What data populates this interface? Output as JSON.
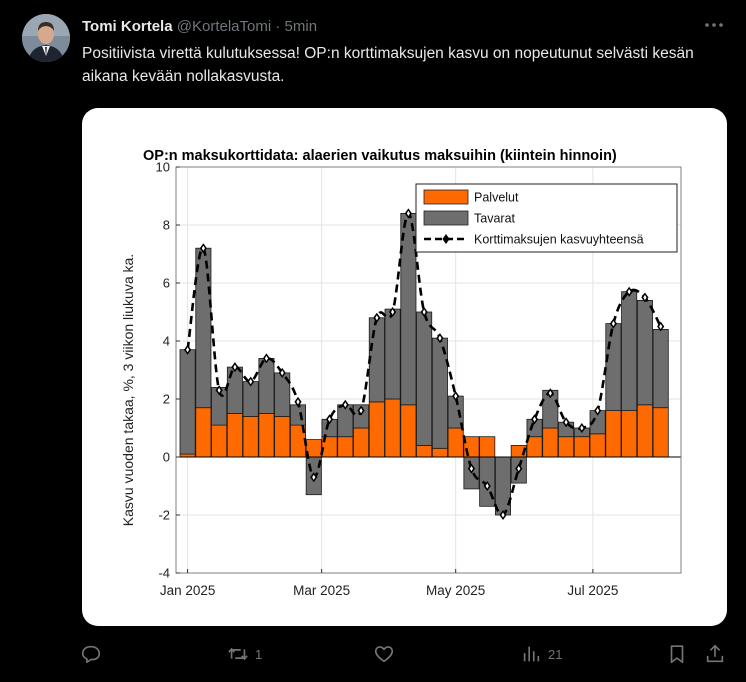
{
  "tweet": {
    "display_name": "Tomi Kortela",
    "handle": "@KortelaTomi",
    "separator": "·",
    "time": "5min",
    "text": "Positiivista virettä kulutuksessa! OP:n korttimaksujen kasvu on nopeutunut selvästi kesän aikana kevään nollakasvusta."
  },
  "actions": {
    "reply_count": "",
    "retweet_count": "1",
    "like_count": "",
    "views_count": "21"
  },
  "colors": {
    "background": "#000000",
    "text": "#e7e9ea",
    "muted": "#71767b",
    "palvelut": "#ff6a00",
    "tavarat": "#6e6e6e"
  },
  "chart_data": {
    "type": "bar",
    "title": "OP:n maksukorttidata: alaerien vaikutus maksuihin (kiintein hinnoin)",
    "ylabel": "Kasvu vuoden takaa, %, 3 viikon liukuva ka.",
    "xlabel": "",
    "ylim": [
      -4,
      10
    ],
    "yticks": [
      -4,
      -2,
      0,
      2,
      4,
      6,
      8,
      10
    ],
    "xticks": [
      {
        "label": "Jan 2025",
        "index": 0
      },
      {
        "label": "Mar 2025",
        "index": 8.5
      },
      {
        "label": "May 2025",
        "index": 17
      },
      {
        "label": "Jul 2025",
        "index": 25.7
      }
    ],
    "legend_position": "top-right",
    "series": [
      {
        "name": "Palvelut",
        "values": [
          0.1,
          1.7,
          1.1,
          1.5,
          1.4,
          1.5,
          1.4,
          1.1,
          0.6,
          0.7,
          0.7,
          1.0,
          1.9,
          2.0,
          1.8,
          0.4,
          0.3,
          1.0,
          0.7,
          0.7,
          0.0,
          0.4,
          0.7,
          1.0,
          0.7,
          0.7,
          0.8,
          1.6,
          1.6,
          1.8,
          1.7
        ]
      },
      {
        "name": "Tavarat",
        "values": [
          3.6,
          5.5,
          1.3,
          1.6,
          1.2,
          1.9,
          1.5,
          0.7,
          -1.3,
          0.6,
          1.1,
          0.8,
          2.9,
          3.1,
          6.6,
          4.6,
          3.8,
          1.1,
          -1.1,
          -1.7,
          -2.0,
          -0.9,
          0.6,
          1.3,
          0.5,
          0.3,
          0.8,
          3.0,
          4.1,
          3.6,
          2.7
        ]
      },
      {
        "name": "Korttimaksujen kasvuyhteensä",
        "values": [
          3.7,
          7.2,
          2.3,
          3.1,
          2.6,
          3.4,
          2.9,
          1.9,
          -0.7,
          1.3,
          1.8,
          1.6,
          4.8,
          5.0,
          8.4,
          5.0,
          4.1,
          2.1,
          -0.4,
          -1.0,
          -2.0,
          -0.4,
          1.3,
          2.2,
          1.2,
          1.0,
          1.6,
          4.6,
          5.7,
          5.5,
          4.5
        ]
      }
    ]
  }
}
